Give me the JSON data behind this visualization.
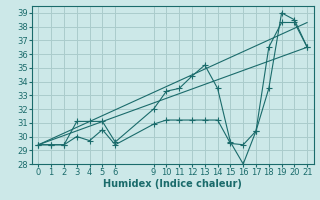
{
  "xlabel": "Humidex (Indice chaleur)",
  "bg_color": "#cce8e8",
  "grid_color": "#aacccc",
  "line_color": "#1a6b6b",
  "xlim": [
    -0.5,
    21.5
  ],
  "ylim": [
    28,
    39.5
  ],
  "xticks": [
    0,
    1,
    2,
    3,
    4,
    5,
    6,
    9,
    10,
    11,
    12,
    13,
    14,
    15,
    16,
    17,
    18,
    19,
    20,
    21
  ],
  "yticks": [
    28,
    29,
    30,
    31,
    32,
    33,
    34,
    35,
    36,
    37,
    38,
    39
  ],
  "series1_x": [
    0,
    1,
    2,
    3,
    4,
    5,
    6,
    9,
    10,
    11,
    12,
    13,
    14,
    15,
    16,
    17,
    18,
    19,
    20,
    21
  ],
  "series1_y": [
    29.4,
    29.4,
    29.4,
    31.1,
    31.1,
    31.1,
    29.6,
    32.0,
    33.3,
    33.5,
    34.4,
    35.2,
    33.5,
    29.6,
    28.0,
    30.4,
    33.5,
    39.0,
    38.5,
    36.5
  ],
  "series2_x": [
    0,
    1,
    2,
    3,
    4,
    5,
    6,
    9,
    10,
    11,
    12,
    13,
    14,
    15,
    16,
    17,
    18,
    19,
    20,
    21
  ],
  "series2_y": [
    29.4,
    29.4,
    29.4,
    30.0,
    29.7,
    30.5,
    29.4,
    30.9,
    31.2,
    31.2,
    31.2,
    31.2,
    31.2,
    29.5,
    29.4,
    30.4,
    36.5,
    38.3,
    38.3,
    36.5
  ],
  "trend1_x": [
    0,
    21
  ],
  "trend1_y": [
    29.4,
    36.5
  ],
  "trend2_x": [
    0,
    21
  ],
  "trend2_y": [
    29.4,
    38.3
  ],
  "xlabel_fontsize": 7,
  "tick_fontsize": 6
}
